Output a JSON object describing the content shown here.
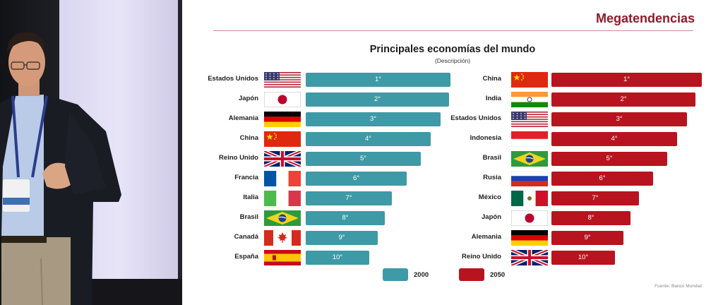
{
  "slide": {
    "title": "Megatendencias",
    "chart_title": "Principales economías del mundo",
    "chart_subtitle": "(Descripción)",
    "source": "Fuente: Banco Mundial"
  },
  "left_ranking": [
    {
      "country": "Estados Unidos",
      "flag": "usa-flag",
      "rank": "1°"
    },
    {
      "country": "Japón",
      "flag": "japan-flag",
      "rank": "2°"
    },
    {
      "country": "Alemania",
      "flag": "germany-flag",
      "rank": "3°"
    },
    {
      "country": "China",
      "flag": "china-flag",
      "rank": "4°"
    },
    {
      "country": "Reino Unido",
      "flag": "uk-flag",
      "rank": "5°"
    },
    {
      "country": "Francia",
      "flag": "france-flag",
      "rank": "6°"
    },
    {
      "country": "Italia",
      "flag": "italy-flag",
      "rank": "7°"
    },
    {
      "country": "Brasil",
      "flag": "brazil-flag",
      "rank": "8°"
    },
    {
      "country": "Canadá",
      "flag": "canada-flag",
      "rank": "9°"
    },
    {
      "country": "España",
      "flag": "spain-flag",
      "rank": "10°"
    }
  ],
  "right_ranking": [
    {
      "country": "China",
      "flag": "china-flag",
      "rank": "1°"
    },
    {
      "country": "India",
      "flag": "india-flag",
      "rank": "2°"
    },
    {
      "country": "Estados Unidos",
      "flag": "usa-flag",
      "rank": "3°"
    },
    {
      "country": "Indonesia",
      "flag": "indonesia-flag",
      "rank": "4°"
    },
    {
      "country": "Brasil",
      "flag": "brazil-flag",
      "rank": "5°"
    },
    {
      "country": "Rusia",
      "flag": "russia-flag",
      "rank": "6°"
    },
    {
      "country": "México",
      "flag": "mexico-flag",
      "rank": "7°"
    },
    {
      "country": "Japón",
      "flag": "japan-flag",
      "rank": "8°"
    },
    {
      "country": "Alemania",
      "flag": "germany-flag",
      "rank": "9°"
    },
    {
      "country": "Reino Unido",
      "flag": "uk-flag",
      "rank": "10°"
    }
  ],
  "legend": {
    "left": {
      "label": "2000",
      "color": "#3e9aa6"
    },
    "right": {
      "label": "2050",
      "color": "#b8141f"
    }
  },
  "colors": {
    "title": "#8c1b2a",
    "bar_2000": "#3e9aa6",
    "bar_2050": "#b8141f"
  }
}
